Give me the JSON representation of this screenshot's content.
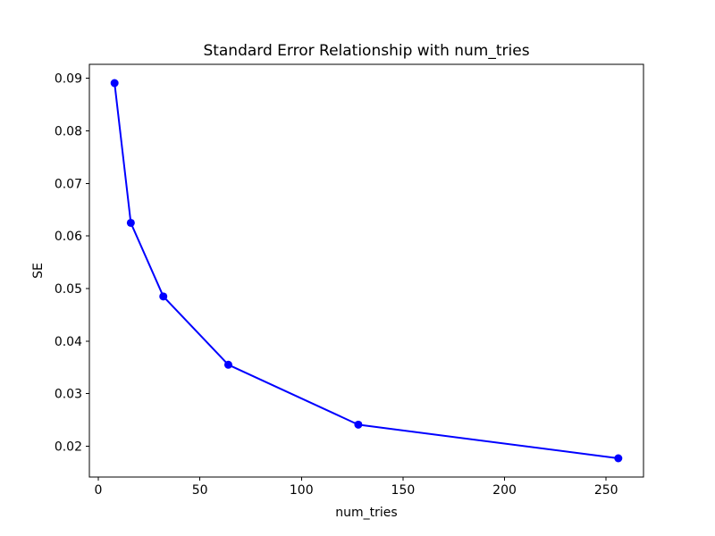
{
  "figure": {
    "background": "#ffffff",
    "text_color": "#000000",
    "spine_color": "#000000"
  },
  "chart_data": {
    "type": "line",
    "title": "Standard Error Relationship with num_tries",
    "xlabel": "num_tries",
    "ylabel": "SE",
    "x": [
      8,
      16,
      32,
      64,
      128,
      256
    ],
    "y": [
      0.0891,
      0.0625,
      0.0485,
      0.0355,
      0.0241,
      0.0177
    ],
    "line_color": "#0000ff",
    "marker": "circle",
    "marker_color": "#0000ff",
    "grid": false,
    "legend": null,
    "xlim": [
      -4.4,
      268.4
    ],
    "ylim": [
      0.01413,
      0.09267
    ],
    "xtick_values": [
      0,
      50,
      100,
      150,
      200,
      250
    ],
    "xtick_labels": [
      "0",
      "50",
      "100",
      "150",
      "200",
      "250"
    ],
    "ytick_values": [
      0.02,
      0.03,
      0.04,
      0.05,
      0.06,
      0.07,
      0.08,
      0.09
    ],
    "ytick_labels": [
      "0.02",
      "0.03",
      "0.04",
      "0.05",
      "0.06",
      "0.07",
      "0.08",
      "0.09"
    ]
  }
}
